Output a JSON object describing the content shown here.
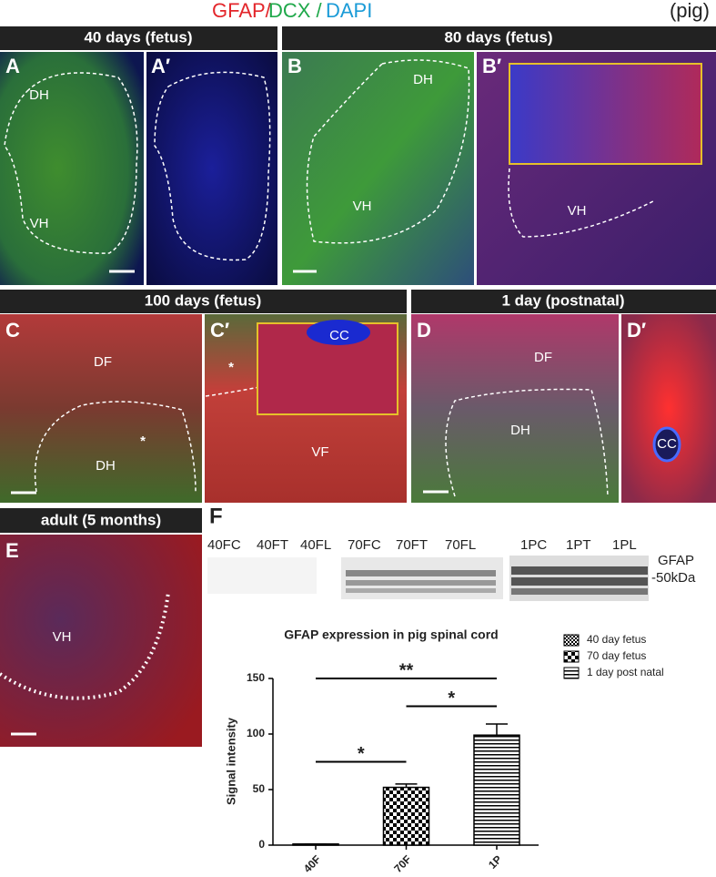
{
  "header": {
    "gfap": "GFAP/",
    "dcx": "DCX /",
    "dapi": "DAPI",
    "species": "(pig)"
  },
  "sections": [
    "40 days (fetus)",
    "80 days (fetus)",
    "100 days (fetus)",
    "1 day (postnatal)",
    "adult (5 months)"
  ],
  "panels": [
    {
      "letter": "A",
      "labels": [
        "DH",
        "VH"
      ]
    },
    {
      "letter": "A′"
    },
    {
      "letter": "B",
      "labels": [
        "DH",
        "VH"
      ]
    },
    {
      "letter": "B′",
      "labels": [
        "VH"
      ]
    },
    {
      "letter": "C",
      "labels": [
        "DF",
        "*",
        "DH"
      ]
    },
    {
      "letter": "C′",
      "labels": [
        "CC",
        "*",
        "VF"
      ]
    },
    {
      "letter": "D",
      "labels": [
        "DF",
        "DH"
      ]
    },
    {
      "letter": "D′",
      "labels": [
        "CC"
      ]
    },
    {
      "letter": "E",
      "labels": [
        "VH"
      ]
    },
    {
      "letter": "F"
    }
  ],
  "blot": {
    "lanes": [
      "40FC",
      "40FT",
      "40FL",
      "70FC",
      "70FT",
      "70FL",
      "1PC",
      "1PT",
      "1PL"
    ],
    "marker": [
      "GFAP",
      "-50kDa"
    ]
  },
  "chart_data": {
    "type": "bar",
    "title": "GFAP expression in pig spinal cord",
    "y_label": "Signal intensity",
    "categories": [
      "40F",
      "70F",
      "1P"
    ],
    "series": [
      {
        "name": "40 day fetus",
        "pattern": "dense-hatch",
        "values": [
          1,
          null,
          null
        ],
        "errors": [
          0,
          null,
          null
        ]
      },
      {
        "name": "70 day fetus",
        "pattern": "checker",
        "values": [
          null,
          52,
          null
        ],
        "errors": [
          null,
          3,
          null
        ]
      },
      {
        "name": "1 day post natal",
        "pattern": "horizontal-stripes",
        "values": [
          null,
          null,
          99
        ],
        "errors": [
          null,
          null,
          10
        ]
      }
    ],
    "ylim": [
      0,
      150
    ],
    "yticks": [
      0,
      50,
      100,
      150
    ],
    "annotations": [
      {
        "text": "*",
        "from": 0,
        "to": 1,
        "y": 75
      },
      {
        "text": "**",
        "from": 0,
        "to": 2,
        "y": 150
      },
      {
        "text": "*",
        "from": 1,
        "to": 2,
        "y": 125
      }
    ]
  }
}
